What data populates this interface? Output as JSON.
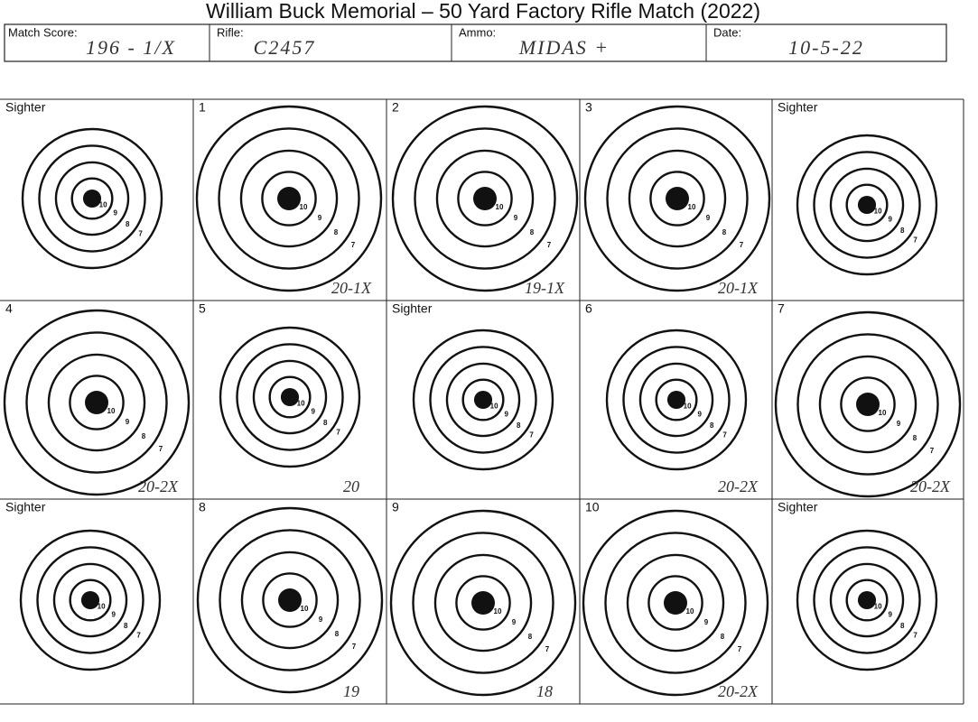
{
  "title": "William Buck Memorial – 50 Yard Factory Rifle Match (2022)",
  "header": {
    "fields": [
      {
        "label": "Match Score:",
        "value": "196 - 1/X"
      },
      {
        "label": "Rifle:",
        "value": "C2457"
      },
      {
        "label": "Ammo:",
        "value": "MIDAS +"
      },
      {
        "label": "Date:",
        "value": "10-5-22"
      }
    ]
  },
  "ring_labels": [
    "10",
    "9",
    "8",
    "7"
  ],
  "targets": [
    {
      "label": "Sighter"
    },
    {
      "label": "1",
      "score": "20-1X"
    },
    {
      "label": "2",
      "score": "19-1X"
    },
    {
      "label": "3",
      "score": "20-1X"
    },
    {
      "label": "Sighter"
    },
    {
      "label": "4",
      "score": "20-2X"
    },
    {
      "label": "5",
      "score": "20"
    },
    {
      "label": "Sighter"
    },
    {
      "label": "6",
      "score": "20-2X"
    },
    {
      "label": "7",
      "score": "20-2X"
    },
    {
      "label": "Sighter"
    },
    {
      "label": "8",
      "score": "19"
    },
    {
      "label": "9",
      "score": "18"
    },
    {
      "label": "10",
      "score": "20-2X"
    },
    {
      "label": "Sighter"
    }
  ]
}
